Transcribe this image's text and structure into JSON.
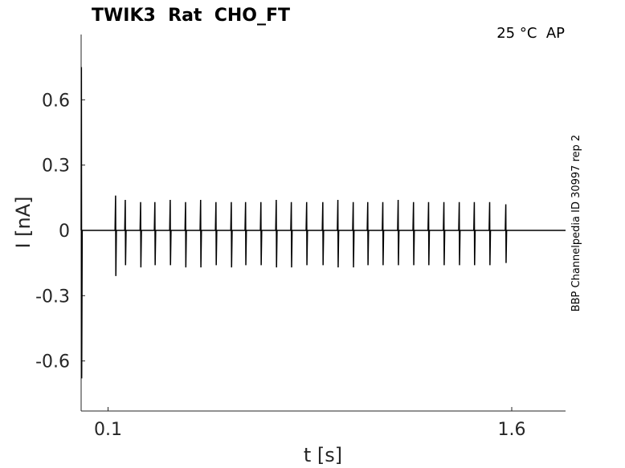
{
  "chart_data": {
    "type": "line",
    "title": "TWIK3  Rat  CHO_FT",
    "annotation": "25 °C  AP",
    "side_text": "BBP Channelpedia ID 30997 rep 2",
    "xlabel": "t [s]",
    "ylabel": "I [nA]",
    "color": "#000000",
    "xlim": [
      0,
      1.8
    ],
    "ylim": [
      -0.83,
      0.9
    ],
    "xticks": [
      0.1,
      1.6
    ],
    "yticks": [
      -0.6,
      -0.3,
      0,
      0.3,
      0.6
    ],
    "x": [
      0,
      0.001,
      0.002,
      0.004,
      0.126,
      0.128,
      0.129,
      0.131,
      0.162,
      0.164,
      0.165,
      0.167,
      0.219,
      0.221,
      0.222,
      0.224,
      0.272,
      0.274,
      0.275,
      0.277,
      0.329,
      0.331,
      0.332,
      0.334,
      0.386,
      0.388,
      0.389,
      0.391,
      0.442,
      0.444,
      0.445,
      0.447,
      0.499,
      0.501,
      0.502,
      0.504,
      0.556,
      0.558,
      0.559,
      0.561,
      0.609,
      0.611,
      0.612,
      0.614,
      0.666,
      0.668,
      0.669,
      0.671,
      0.723,
      0.725,
      0.726,
      0.728,
      0.779,
      0.781,
      0.782,
      0.784,
      0.836,
      0.838,
      0.839,
      0.841,
      0.896,
      0.898,
      0.899,
      0.901,
      0.952,
      0.954,
      0.955,
      0.957,
      1.009,
      1.011,
      1.012,
      1.014,
      1.063,
      1.065,
      1.066,
      1.068,
      1.119,
      1.121,
      1.122,
      1.124,
      1.176,
      1.178,
      1.179,
      1.181,
      1.233,
      1.235,
      1.236,
      1.238,
      1.289,
      1.291,
      1.292,
      1.294,
      1.346,
      1.348,
      1.349,
      1.351,
      1.403,
      1.405,
      1.406,
      1.408,
      1.459,
      1.461,
      1.462,
      1.464,
      1.516,
      1.518,
      1.519,
      1.521,
      1.576,
      1.578,
      1.579,
      1.581,
      1.8
    ],
    "values": [
      0,
      0.75,
      -0.68,
      0,
      0,
      0.16,
      -0.21,
      0,
      0,
      0.14,
      -0.16,
      0,
      0,
      0.13,
      -0.17,
      0,
      0,
      0.13,
      -0.16,
      0,
      0,
      0.14,
      -0.16,
      0,
      0,
      0.13,
      -0.17,
      0,
      0,
      0.14,
      -0.17,
      0,
      0,
      0.13,
      -0.16,
      0,
      0,
      0.13,
      -0.17,
      0,
      0,
      0.13,
      -0.16,
      0,
      0,
      0.13,
      -0.16,
      0,
      0,
      0.14,
      -0.17,
      0,
      0,
      0.13,
      -0.17,
      0,
      0,
      0.13,
      -0.16,
      0,
      0,
      0.13,
      -0.16,
      0,
      0,
      0.14,
      -0.17,
      0,
      0,
      0.13,
      -0.17,
      0,
      0,
      0.13,
      -0.16,
      0,
      0,
      0.13,
      -0.16,
      0,
      0,
      0.14,
      -0.16,
      0,
      0,
      0.13,
      -0.16,
      0,
      0,
      0.13,
      -0.16,
      0,
      0,
      0.13,
      -0.16,
      0,
      0,
      0.13,
      -0.16,
      0,
      0,
      0.13,
      -0.16,
      0,
      0,
      0.13,
      -0.16,
      0,
      0,
      0.12,
      -0.15,
      0,
      0
    ]
  }
}
